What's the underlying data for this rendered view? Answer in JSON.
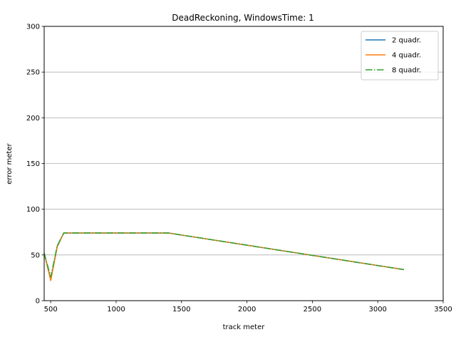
{
  "chart_data": {
    "type": "line",
    "title": "DeadReckoning, WindowsTime: 1",
    "xlabel": "track meter",
    "ylabel": "error meter",
    "xlim": [
      450,
      3500
    ],
    "ylim": [
      0,
      300
    ],
    "xticks": [
      500,
      1000,
      1500,
      2000,
      2500,
      3000,
      3500
    ],
    "yticks": [
      0,
      50,
      100,
      150,
      200,
      250,
      300
    ],
    "grid": "horizontal",
    "legend_position": "top-right",
    "series": [
      {
        "name": "2 quadr.",
        "color": "#1f77b4",
        "style": "solid",
        "x": [
          450,
          500,
          550,
          600,
          1400,
          3200
        ],
        "y": [
          52,
          23,
          60,
          74,
          74,
          34
        ]
      },
      {
        "name": "4 quadr.",
        "color": "#ff7f0e",
        "style": "solid",
        "x": [
          450,
          500,
          550,
          600,
          1400,
          3200
        ],
        "y": [
          52,
          22,
          59,
          74,
          74,
          34
        ]
      },
      {
        "name": "8 quadr.",
        "color": "#2ca02c",
        "style": "dashdot",
        "x": [
          450,
          500,
          550,
          600,
          1400,
          3200
        ],
        "y": [
          52,
          26,
          60,
          74,
          74,
          34
        ]
      }
    ]
  }
}
